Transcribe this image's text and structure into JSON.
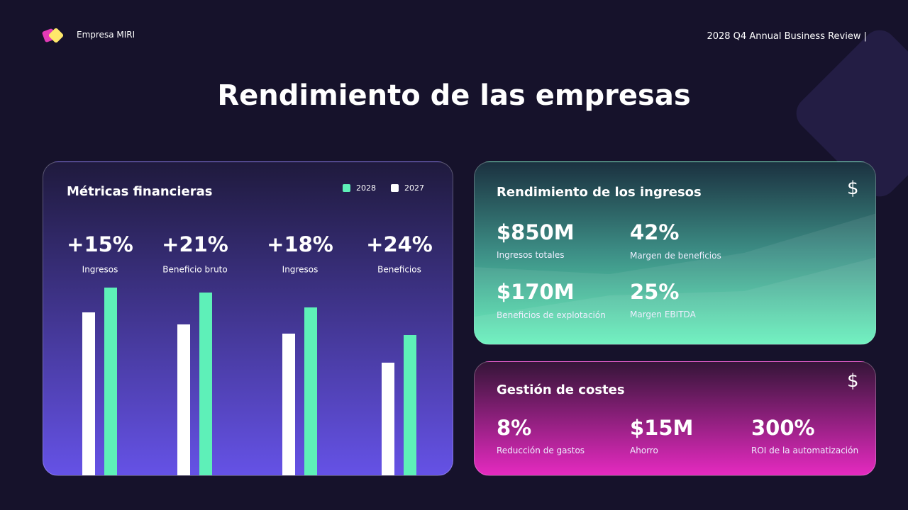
{
  "header": {
    "brand": "Empresa MIRI",
    "subtitle": "2028 Q4 Annual Business Review |"
  },
  "title": "Rendimiento de las empresas",
  "chart_data": {
    "type": "bar",
    "title": "Métricas financieras",
    "categories": [
      "Ingresos",
      "Beneficio bruto",
      "Ingresos",
      "Beneficios"
    ],
    "annotations": [
      "+15%",
      "+21%",
      "+18%",
      "+24%"
    ],
    "series": [
      {
        "name": "2028",
        "color": "#5ef0b8",
        "values": [
          265,
          258,
          237,
          198
        ]
      },
      {
        "name": "2027",
        "color": "#ffffff",
        "values": [
          230,
          213,
          200,
          159
        ]
      }
    ],
    "ylim": [
      0,
      265
    ]
  },
  "revenue": {
    "title": "Rendimiento de los ingresos",
    "icon": "$",
    "metrics": [
      {
        "value": "$850M",
        "label": "Ingresos totales"
      },
      {
        "value": "42%",
        "label": "Margen de beneficios"
      },
      {
        "value": "$170M",
        "label": "Beneficios de explotación"
      },
      {
        "value": "25%",
        "label": "Margen EBITDA"
      }
    ]
  },
  "costs": {
    "title": "Gestión de costes",
    "icon": "$",
    "metrics": [
      {
        "value": "8%",
        "label": "Reducción de gastos"
      },
      {
        "value": "$15M",
        "label": "Ahorro"
      },
      {
        "value": "300%",
        "label": "ROI de la automatización"
      }
    ]
  }
}
